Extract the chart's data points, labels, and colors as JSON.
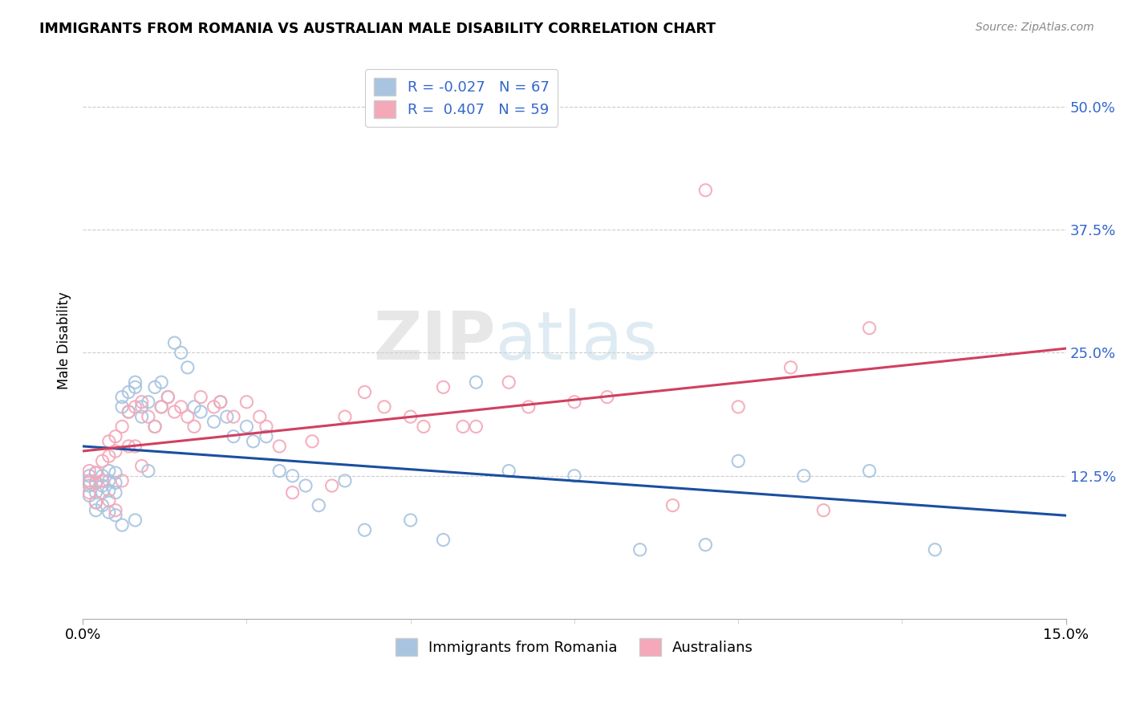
{
  "title": "IMMIGRANTS FROM ROMANIA VS AUSTRALIAN MALE DISABILITY CORRELATION CHART",
  "source": "Source: ZipAtlas.com",
  "ylabel": "Male Disability",
  "ytick_labels": [
    "12.5%",
    "25.0%",
    "37.5%",
    "50.0%"
  ],
  "ytick_values": [
    0.125,
    0.25,
    0.375,
    0.5
  ],
  "xlim": [
    0.0,
    0.15
  ],
  "ylim": [
    -0.02,
    0.545
  ],
  "blue_R": -0.027,
  "blue_N": 67,
  "pink_R": 0.407,
  "pink_N": 59,
  "blue_color": "#a8c4e0",
  "pink_color": "#f4a8b8",
  "blue_line_color": "#1a4fa0",
  "pink_line_color": "#d04060",
  "watermark_zip": "ZIP",
  "watermark_atlas": "atlas",
  "blue_scatter_x": [
    0.001,
    0.001,
    0.001,
    0.001,
    0.002,
    0.002,
    0.002,
    0.002,
    0.002,
    0.003,
    0.003,
    0.003,
    0.003,
    0.004,
    0.004,
    0.004,
    0.004,
    0.005,
    0.005,
    0.005,
    0.005,
    0.006,
    0.006,
    0.006,
    0.007,
    0.007,
    0.008,
    0.008,
    0.008,
    0.009,
    0.009,
    0.01,
    0.01,
    0.011,
    0.011,
    0.012,
    0.012,
    0.013,
    0.014,
    0.015,
    0.016,
    0.017,
    0.018,
    0.02,
    0.021,
    0.022,
    0.023,
    0.025,
    0.026,
    0.028,
    0.03,
    0.032,
    0.034,
    0.036,
    0.04,
    0.043,
    0.05,
    0.055,
    0.06,
    0.065,
    0.075,
    0.085,
    0.095,
    0.1,
    0.11,
    0.12,
    0.13
  ],
  "blue_scatter_y": [
    0.125,
    0.12,
    0.115,
    0.105,
    0.128,
    0.118,
    0.108,
    0.098,
    0.09,
    0.125,
    0.115,
    0.108,
    0.095,
    0.13,
    0.12,
    0.11,
    0.088,
    0.128,
    0.118,
    0.108,
    0.085,
    0.205,
    0.195,
    0.075,
    0.21,
    0.19,
    0.22,
    0.215,
    0.08,
    0.195,
    0.185,
    0.2,
    0.13,
    0.215,
    0.175,
    0.22,
    0.195,
    0.205,
    0.26,
    0.25,
    0.235,
    0.195,
    0.19,
    0.18,
    0.2,
    0.185,
    0.165,
    0.175,
    0.16,
    0.165,
    0.13,
    0.125,
    0.115,
    0.095,
    0.12,
    0.07,
    0.08,
    0.06,
    0.22,
    0.13,
    0.125,
    0.05,
    0.055,
    0.14,
    0.125,
    0.13,
    0.05
  ],
  "pink_scatter_x": [
    0.001,
    0.001,
    0.001,
    0.002,
    0.002,
    0.002,
    0.003,
    0.003,
    0.004,
    0.004,
    0.004,
    0.005,
    0.005,
    0.005,
    0.006,
    0.006,
    0.007,
    0.007,
    0.008,
    0.008,
    0.009,
    0.009,
    0.01,
    0.011,
    0.012,
    0.013,
    0.014,
    0.015,
    0.016,
    0.017,
    0.018,
    0.02,
    0.021,
    0.023,
    0.025,
    0.027,
    0.028,
    0.03,
    0.032,
    0.035,
    0.038,
    0.04,
    0.043,
    0.046,
    0.05,
    0.052,
    0.055,
    0.058,
    0.06,
    0.065,
    0.068,
    0.075,
    0.08,
    0.09,
    0.095,
    0.1,
    0.108,
    0.113,
    0.12
  ],
  "pink_scatter_y": [
    0.13,
    0.118,
    0.108,
    0.128,
    0.118,
    0.098,
    0.14,
    0.12,
    0.16,
    0.145,
    0.1,
    0.165,
    0.15,
    0.09,
    0.175,
    0.12,
    0.19,
    0.155,
    0.195,
    0.155,
    0.2,
    0.135,
    0.185,
    0.175,
    0.195,
    0.205,
    0.19,
    0.195,
    0.185,
    0.175,
    0.205,
    0.195,
    0.2,
    0.185,
    0.2,
    0.185,
    0.175,
    0.155,
    0.108,
    0.16,
    0.115,
    0.185,
    0.21,
    0.195,
    0.185,
    0.175,
    0.215,
    0.175,
    0.175,
    0.22,
    0.195,
    0.2,
    0.205,
    0.095,
    0.415,
    0.195,
    0.235,
    0.09,
    0.275
  ]
}
